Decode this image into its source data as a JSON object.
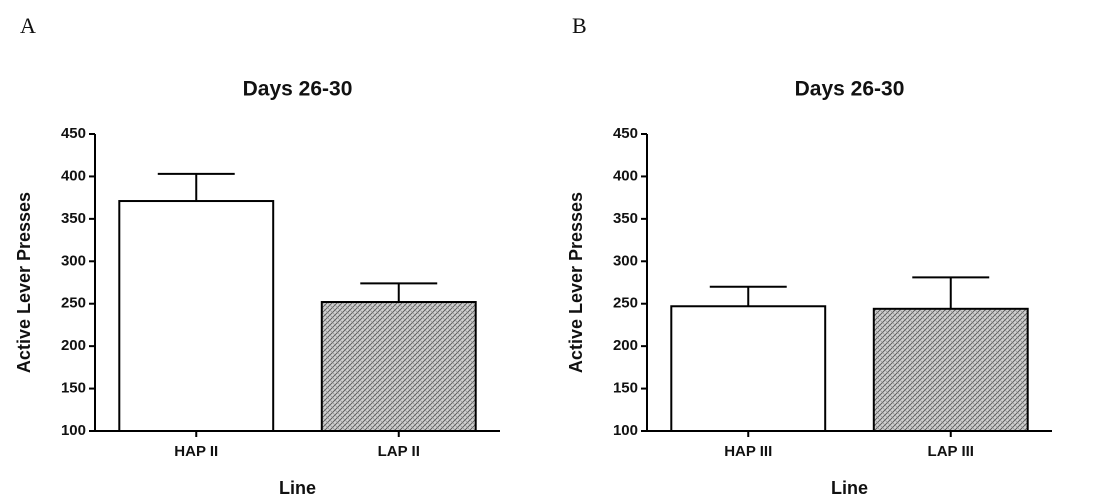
{
  "chart_data": [
    {
      "type": "bar",
      "panel": "A",
      "title": "Days 26-30",
      "xlabel": "Line",
      "ylabel": "Active Lever Presses",
      "categories": [
        "HAP II",
        "LAP II"
      ],
      "values": [
        371,
        252
      ],
      "errors": [
        32,
        22
      ],
      "bar_fills": [
        "plain",
        "hatched"
      ],
      "ylim": [
        100,
        450
      ],
      "yticks": [
        100,
        150,
        200,
        250,
        300,
        350,
        400,
        450
      ]
    },
    {
      "type": "bar",
      "panel": "B",
      "title": "Days 26-30",
      "xlabel": "Line",
      "ylabel": "Active Lever Presses",
      "categories": [
        "HAP III",
        "LAP III"
      ],
      "values": [
        247,
        244
      ],
      "errors": [
        23,
        37
      ],
      "bar_fills": [
        "plain",
        "hatched"
      ],
      "ylim": [
        100,
        450
      ],
      "yticks": [
        100,
        150,
        200,
        250,
        300,
        350,
        400,
        450
      ]
    }
  ]
}
